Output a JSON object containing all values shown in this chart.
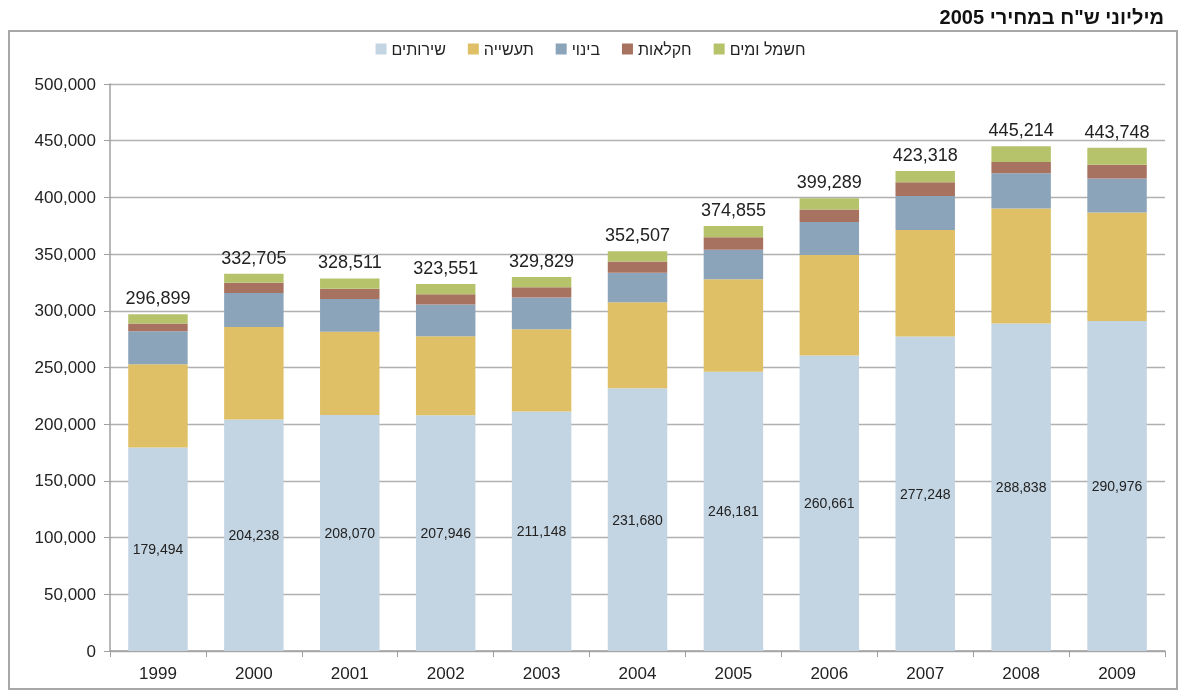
{
  "chart_data": {
    "type": "bar",
    "title": "מיליוני ש\"ח במחירי 2005",
    "categories": [
      "1999",
      "2000",
      "2001",
      "2002",
      "2003",
      "2004",
      "2005",
      "2006",
      "2007",
      "2008",
      "2009"
    ],
    "series": [
      {
        "name": "שירותים",
        "color": "#c3d4e2",
        "values": [
          179494,
          204238,
          208070,
          207946,
          211148,
          231680,
          246181,
          260661,
          277248,
          288838,
          290976
        ],
        "value_labels": [
          "179,494",
          "204,238",
          "208,070",
          "207,946",
          "211,148",
          "231,680",
          "246,181",
          "260,661",
          "277,248",
          "288,838",
          "290,976"
        ]
      },
      {
        "name": "תעשייה",
        "color": "#dfc066",
        "values": [
          73405,
          81467,
          73441,
          69605,
          72681,
          75827,
          81674,
          88628,
          94070,
          101376,
          95772
        ]
      },
      {
        "name": "בינוי",
        "color": "#8ba4ba",
        "values": [
          29000,
          30000,
          29000,
          28000,
          28000,
          26000,
          26000,
          29000,
          30000,
          31000,
          30000
        ]
      },
      {
        "name": "חקלאות",
        "color": "#a87260",
        "values": [
          7000,
          9000,
          9000,
          9000,
          9000,
          10000,
          11000,
          11000,
          12000,
          10000,
          12000
        ]
      },
      {
        "name": "חשמל ומים",
        "color": "#b6c36b",
        "values": [
          8000,
          8000,
          9000,
          9000,
          9000,
          9000,
          10000,
          10000,
          10000,
          14000,
          15000
        ]
      }
    ],
    "stacked": true,
    "totals": [
      "296,899",
      "332,705",
      "328,511",
      "323,551",
      "329,829",
      "352,507",
      "374,855",
      "399,289",
      "423,318",
      "445,214",
      "443,748"
    ],
    "ylim": [
      0,
      500000
    ],
    "yticks": [
      0,
      {
        "value": 50000,
        "label": "50,000"
      },
      {
        "value": 100000,
        "label": "100,000"
      },
      {
        "value": 150000,
        "label": "150,000"
      },
      {
        "value": 200000,
        "label": "200,000"
      },
      {
        "value": 250000,
        "label": "250,000"
      },
      {
        "value": 300000,
        "label": "300,000"
      },
      {
        "value": 350000,
        "label": "350,000"
      },
      {
        "value": 400000,
        "label": "400,000"
      },
      {
        "value": 450000,
        "label": "450,000"
      },
      {
        "value": 500000,
        "label": "500,000"
      }
    ],
    "grid": "y",
    "legend": "top"
  }
}
